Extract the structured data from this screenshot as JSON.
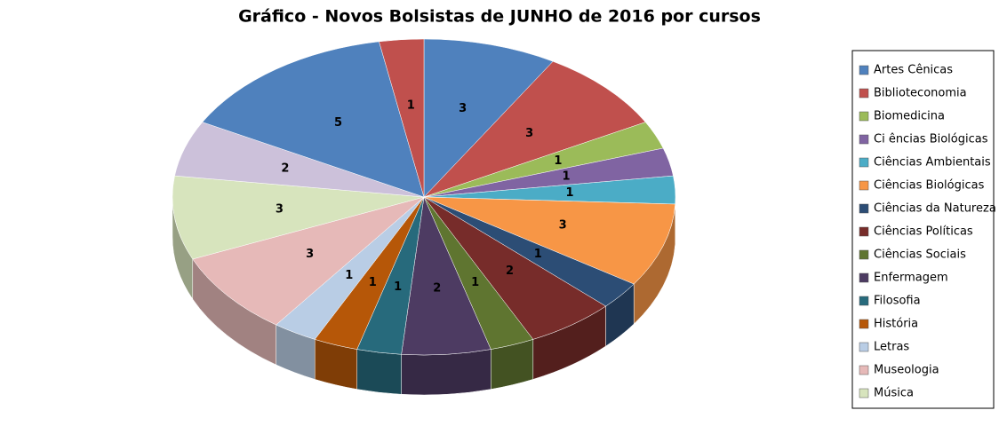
{
  "chart_data": {
    "type": "pie3d",
    "title": "Gráfico - Novos Bolsistas de JUNHO de 2016 por cursos",
    "categories": [
      "Artes Cênicas",
      "Biblioteconomia",
      "Biomedicina",
      "Ci ências Biológicas",
      "Ciências Ambientais",
      "Ciências Biológicas",
      "Ciências da Natureza",
      "Ciências Políticas",
      "Ciências Sociais",
      "Enfermagem",
      "Filosofia",
      "História",
      "Letras",
      "Museologia",
      "Música",
      null,
      null,
      null
    ],
    "values": [
      3,
      3,
      1,
      1,
      1,
      3,
      1,
      2,
      1,
      2,
      1,
      1,
      1,
      3,
      3,
      2,
      5,
      1
    ],
    "colors": [
      "#4F81BD",
      "#C0504D",
      "#9BBB59",
      "#8064A2",
      "#4BACC6",
      "#F79646",
      "#2C4D75",
      "#772C2A",
      "#5F7530",
      "#4D3B62",
      "#276A7C",
      "#B65708",
      "#B9CDE5",
      "#E6B9B8",
      "#D7E4BD",
      "#CCC1DA",
      "#4F81BD",
      "#C0504D"
    ],
    "legend": "right"
  }
}
